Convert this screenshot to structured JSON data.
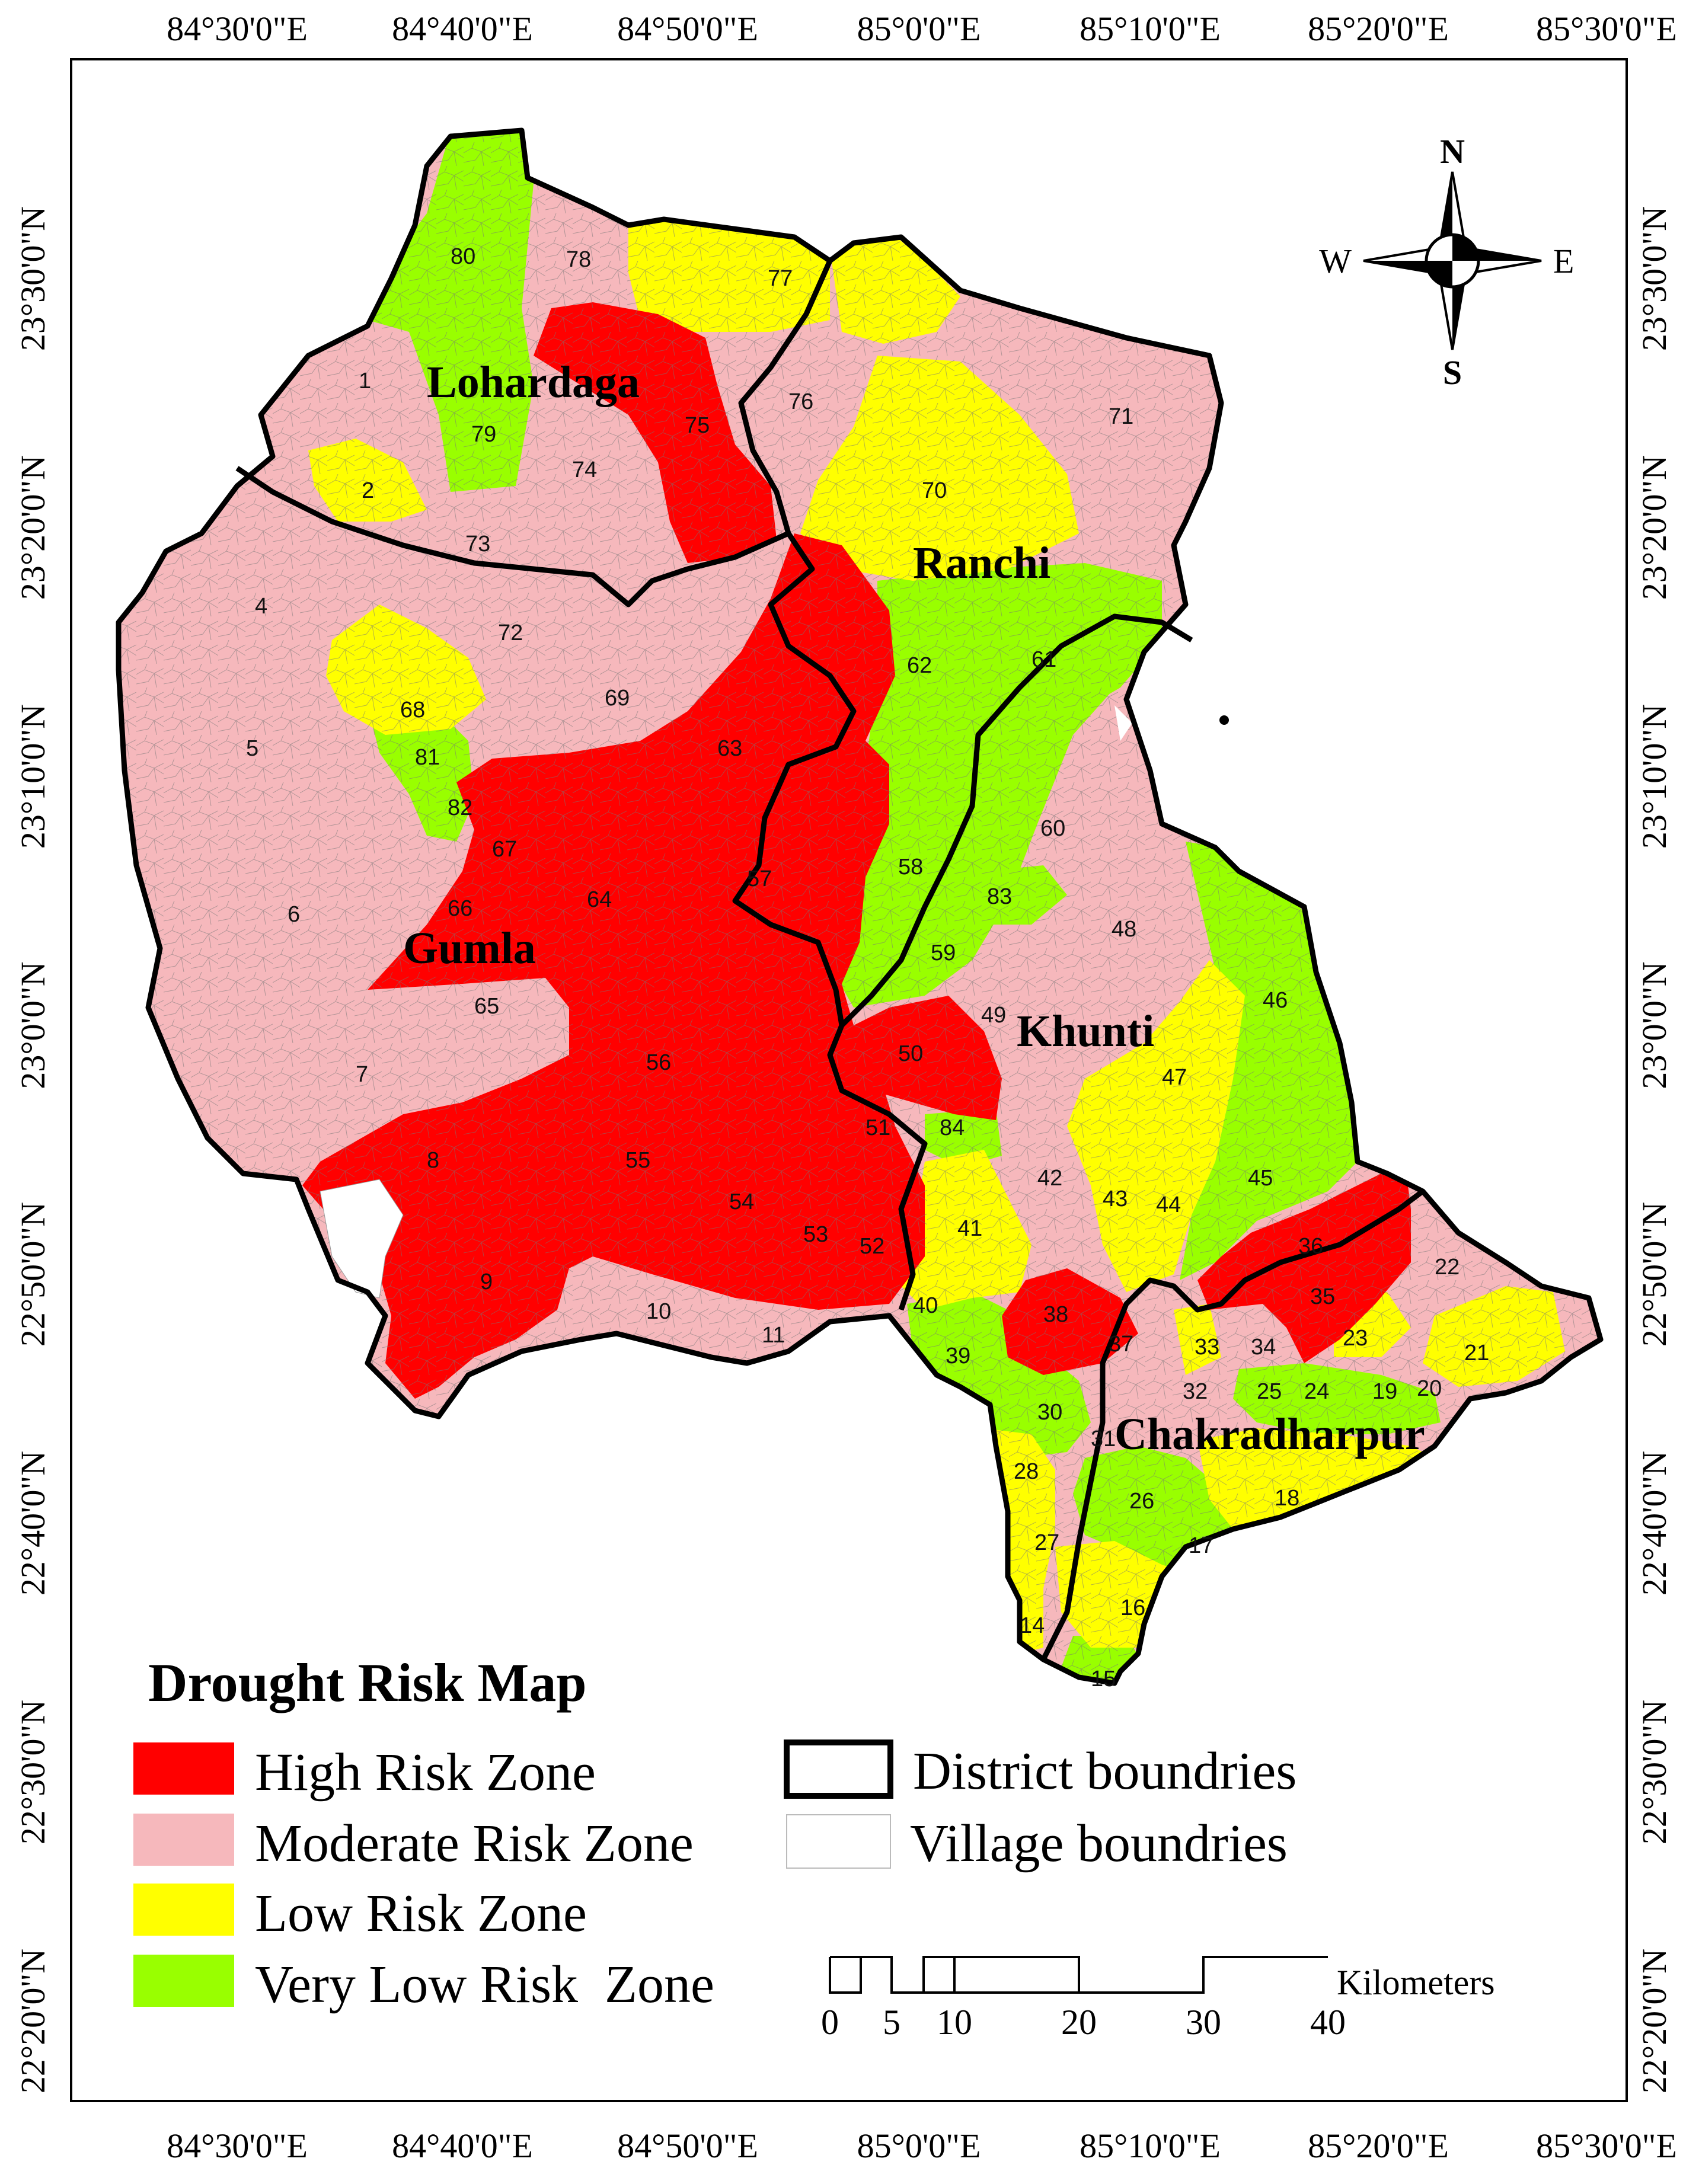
{
  "map": {
    "longitude_labels": [
      "84°30'0\"E",
      "84°40'0\"E",
      "84°50'0\"E",
      "85°0'0\"E",
      "85°10'0\"E",
      "85°20'0\"E",
      "85°30'0\"E"
    ],
    "latitude_labels": [
      "23°30'0\"N",
      "23°20'0\"N",
      "23°10'0\"N",
      "23°0'0\"N",
      "22°50'0\"N",
      "22°40'0\"N",
      "22°30'0\"N",
      "22°20'0\"N"
    ],
    "districts": [
      "Lohardaga",
      "Ranchi",
      "Gumla",
      "Khunti",
      "Chakradharpur"
    ],
    "village_numbers": [
      "80",
      "78",
      "77",
      "1",
      "79",
      "75",
      "76",
      "71",
      "2",
      "74",
      "73",
      "70",
      "4",
      "72",
      "62",
      "61",
      "69",
      "68",
      "5",
      "81",
      "63",
      "60",
      "82",
      "67",
      "58",
      "57",
      "6",
      "66",
      "64",
      "83",
      "48",
      "59",
      "65",
      "49",
      "46",
      "7",
      "56",
      "50",
      "47",
      "51",
      "84",
      "8",
      "55",
      "45",
      "42",
      "54",
      "43",
      "44",
      "41",
      "53",
      "52",
      "36",
      "22",
      "9",
      "35",
      "10",
      "11",
      "38",
      "40",
      "39",
      "37",
      "33",
      "34",
      "23",
      "21",
      "32",
      "25",
      "24",
      "19",
      "20",
      "30",
      "31",
      "28",
      "26",
      "18",
      "27",
      "17",
      "16",
      "14",
      "15"
    ]
  },
  "compass": {
    "n": "N",
    "s": "S",
    "e": "E",
    "w": "W"
  },
  "legend": {
    "title": "Drought Risk Map",
    "items": [
      {
        "label": "High Risk Zone",
        "color": "#FF0000"
      },
      {
        "label": "Moderate Risk Zone",
        "color": "#F6B8BC"
      },
      {
        "label": "Low Risk Zone",
        "color": "#FFFF00"
      },
      {
        "label": "Very Low Risk  Zone",
        "color": "#99FF00"
      }
    ],
    "boundaries": [
      {
        "label": "District boundries"
      },
      {
        "label": "Village boundries"
      }
    ]
  },
  "scalebar": {
    "ticks": [
      "0",
      "5",
      "10",
      "20",
      "30",
      "40"
    ],
    "unit": "Kilometers"
  }
}
